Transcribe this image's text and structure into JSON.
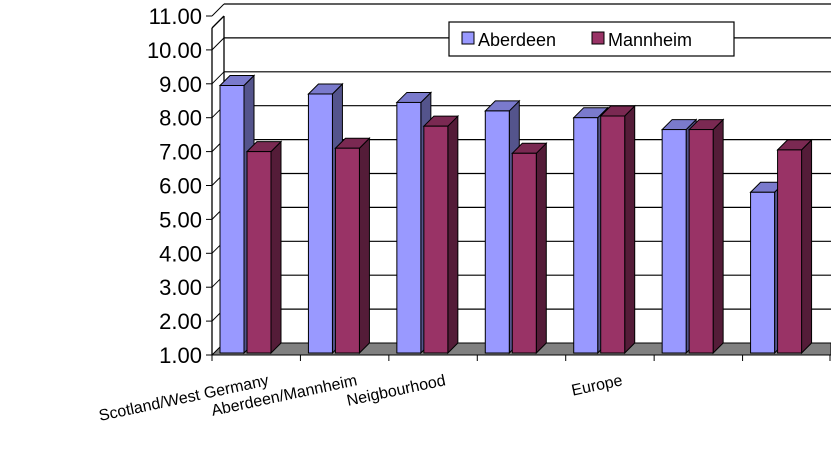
{
  "chart_data": {
    "type": "bar",
    "title": "",
    "xlabel": "",
    "ylabel": "",
    "categories": [
      "Scotland/West Germany",
      "Aberdeen/Mannheim",
      "Neigbourhood",
      "",
      "Europe",
      "",
      ""
    ],
    "series": [
      {
        "name": "Aberdeen",
        "values": [
          8.95,
          8.7,
          8.45,
          8.2,
          8.0,
          7.65,
          5.8
        ],
        "color": "#9999ff"
      },
      {
        "name": "Mannheim",
        "values": [
          7.0,
          7.1,
          7.75,
          6.95,
          8.05,
          7.65,
          7.05
        ],
        "color": "#993366"
      }
    ],
    "ylim": [
      1.0,
      11.0
    ],
    "yticks": [
      "1.00",
      "2.00",
      "3.00",
      "4.00",
      "5.00",
      "6.00",
      "7.00",
      "8.00",
      "9.00",
      "10.00",
      "11.00"
    ],
    "grid": true,
    "legend_position": "top-right",
    "style": "3d-clustered-column"
  }
}
